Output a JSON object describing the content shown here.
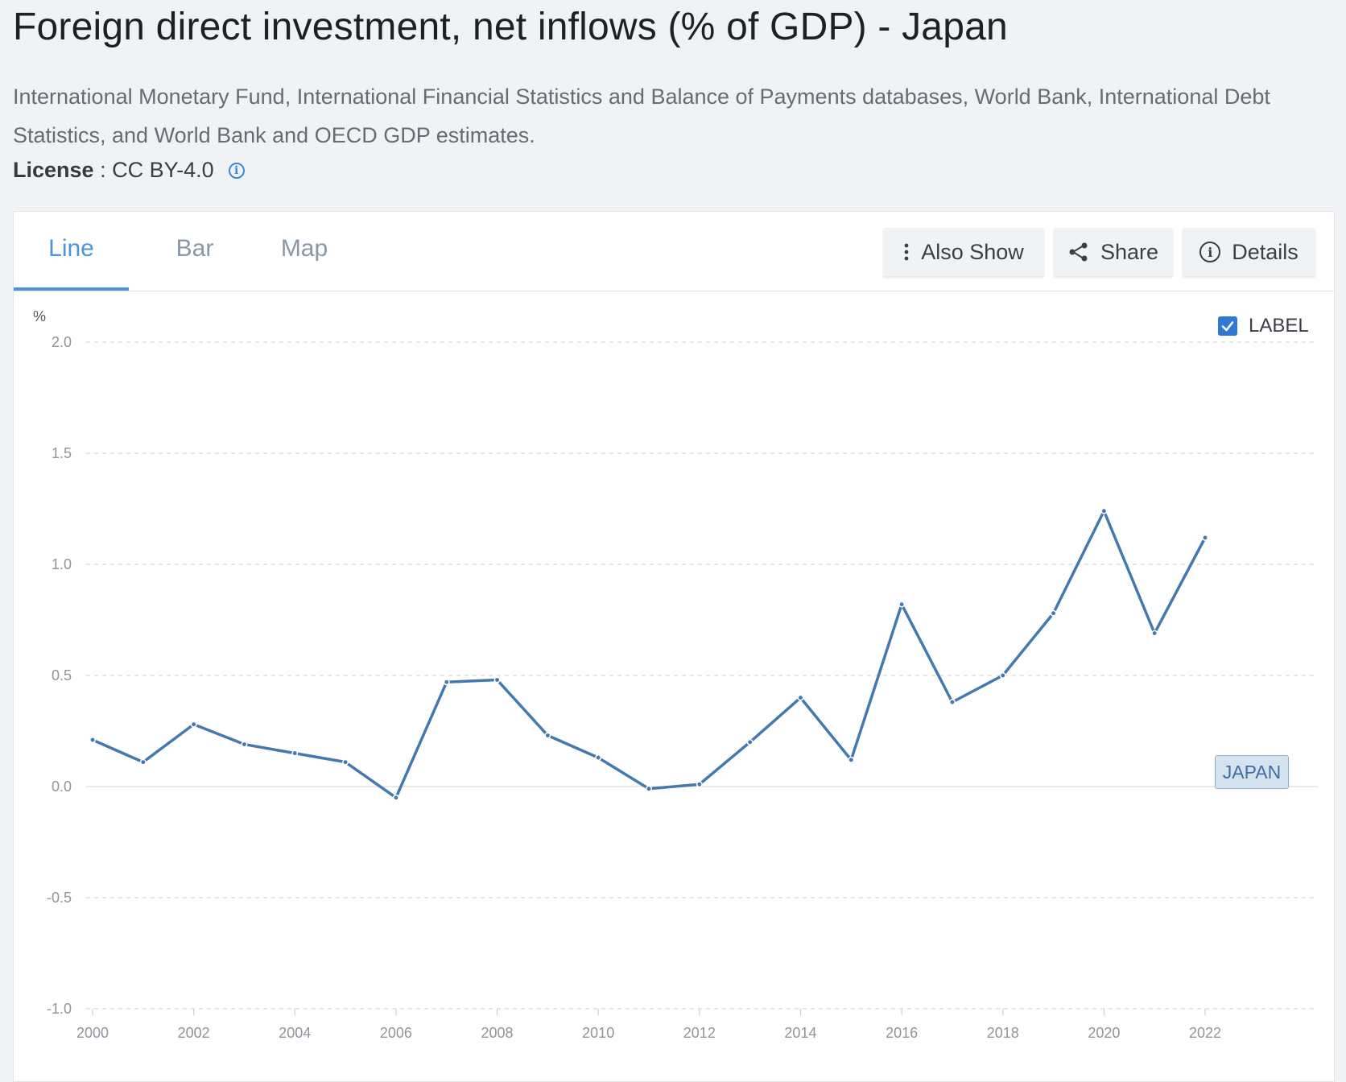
{
  "header": {
    "title": "Foreign direct investment, net inflows (% of GDP) - Japan",
    "source": "International Monetary Fund, International Financial Statistics and Balance of Payments databases, World Bank, International Debt Statistics, and World Bank and OECD GDP estimates.",
    "license_label": "License",
    "license_sep": " : ",
    "license_value": "CC BY-4.0",
    "info_glyph": "i"
  },
  "tabs": [
    {
      "label": "Line",
      "active": true
    },
    {
      "label": "Bar",
      "active": false
    },
    {
      "label": "Map",
      "active": false
    }
  ],
  "toolbar": {
    "also_show": "Also Show",
    "share": "Share",
    "details": "Details",
    "icons": [
      "more-vertical-icon",
      "share-icon",
      "info-icon"
    ]
  },
  "legend": {
    "checkbox_label": "LABEL",
    "checked": true
  },
  "colors": {
    "line": "#4479b0",
    "accent": "#4a95dc",
    "grid": "#d8d8d8"
  },
  "chart_data": {
    "type": "line",
    "ylabel": "%",
    "ylim": [
      -1.0,
      2.0
    ],
    "yticks": [
      -1.0,
      -0.5,
      0.0,
      0.5,
      1.0,
      1.5,
      2.0
    ],
    "yticklabels": [
      "-1.0",
      "-0.5",
      "0.0",
      "0.5",
      "1.0",
      "1.5",
      "2.0"
    ],
    "xlim": [
      2000,
      2022
    ],
    "xticks": [
      2000,
      2002,
      2004,
      2006,
      2008,
      2010,
      2012,
      2014,
      2016,
      2018,
      2020,
      2022
    ],
    "x": [
      2000,
      2001,
      2002,
      2003,
      2004,
      2005,
      2006,
      2007,
      2008,
      2009,
      2010,
      2011,
      2012,
      2013,
      2014,
      2015,
      2016,
      2017,
      2018,
      2019,
      2020,
      2021,
      2022
    ],
    "series": [
      {
        "name": "JAPAN",
        "values": [
          0.21,
          0.11,
          0.28,
          0.19,
          0.15,
          0.11,
          -0.05,
          0.47,
          0.48,
          0.23,
          0.13,
          -0.01,
          0.01,
          0.2,
          0.4,
          0.12,
          0.82,
          0.38,
          0.5,
          0.78,
          1.24,
          0.69,
          1.12
        ]
      }
    ],
    "grid": true,
    "legend_position": "top-right"
  }
}
